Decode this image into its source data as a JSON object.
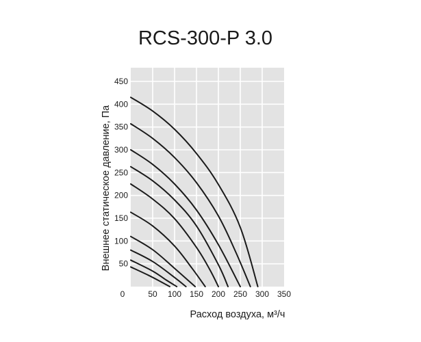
{
  "chart_data": {
    "type": "line",
    "title": "RCS-300-P 3.0",
    "xlabel": "Расход воздуха, м³/ч",
    "ylabel": "Внешнее статическое давление, Па",
    "xlim": [
      0,
      350
    ],
    "ylim": [
      0,
      480
    ],
    "x_ticks": [
      "0",
      "50",
      "100",
      "150",
      "200",
      "250",
      "300",
      "350"
    ],
    "y_ticks": [
      "50",
      "100",
      "150",
      "200",
      "250",
      "300",
      "350",
      "400",
      "450"
    ],
    "grid": true,
    "legend": "none",
    "series": [
      {
        "values": [
          [
            0,
            415
          ],
          [
            50,
            385
          ],
          [
            100,
            345
          ],
          [
            150,
            292
          ],
          [
            200,
            224
          ],
          [
            250,
            130
          ],
          [
            290,
            0
          ]
        ]
      },
      {
        "values": [
          [
            0,
            357
          ],
          [
            50,
            325
          ],
          [
            100,
            283
          ],
          [
            150,
            228
          ],
          [
            200,
            155
          ],
          [
            240,
            75
          ],
          [
            273,
            0
          ]
        ]
      },
      {
        "values": [
          [
            0,
            300
          ],
          [
            50,
            268
          ],
          [
            100,
            225
          ],
          [
            150,
            168
          ],
          [
            200,
            92
          ],
          [
            250,
            0
          ]
        ]
      },
      {
        "values": [
          [
            0,
            263
          ],
          [
            50,
            232
          ],
          [
            100,
            190
          ],
          [
            150,
            133
          ],
          [
            200,
            48
          ],
          [
            222,
            0
          ]
        ]
      },
      {
        "values": [
          [
            0,
            225
          ],
          [
            50,
            192
          ],
          [
            100,
            149
          ],
          [
            150,
            86
          ],
          [
            180,
            38
          ],
          [
            200,
            0
          ]
        ]
      },
      {
        "values": [
          [
            0,
            163
          ],
          [
            50,
            133
          ],
          [
            100,
            89
          ],
          [
            140,
            40
          ],
          [
            170,
            0
          ]
        ]
      },
      {
        "values": [
          [
            0,
            110
          ],
          [
            50,
            81
          ],
          [
            100,
            40
          ],
          [
            147,
            0
          ]
        ]
      },
      {
        "values": [
          [
            0,
            80
          ],
          [
            50,
            55
          ],
          [
            100,
            20
          ],
          [
            126,
            0
          ]
        ]
      },
      {
        "values": [
          [
            0,
            58
          ],
          [
            50,
            34
          ],
          [
            80,
            15
          ],
          [
            105,
            0
          ]
        ]
      },
      {
        "values": [
          [
            0,
            43
          ],
          [
            40,
            25
          ],
          [
            70,
            10
          ],
          [
            89,
            0
          ]
        ]
      }
    ]
  }
}
